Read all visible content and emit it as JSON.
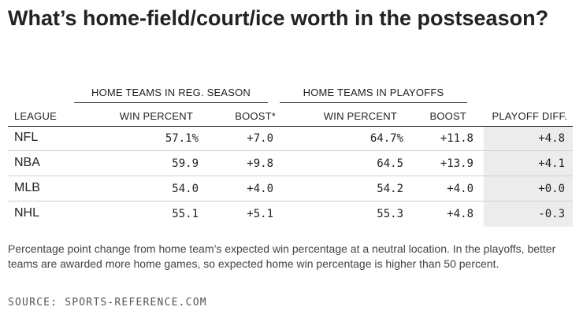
{
  "title": "What’s home-field/court/ice worth in the postseason?",
  "groups": {
    "reg_season": "HOME TEAMS IN REG. SEASON",
    "playoffs": "HOME TEAMS IN PLAYOFFS"
  },
  "columns": [
    "LEAGUE",
    "WIN PERCENT",
    "BOOST*",
    "WIN PERCENT",
    "BOOST",
    "PLAYOFF DIFF."
  ],
  "rows": [
    {
      "league": "NFL",
      "reg_win": "57.1%",
      "reg_boost": "+7.0",
      "po_win": "64.7%",
      "po_boost": "+11.8",
      "diff": "+4.8"
    },
    {
      "league": "NBA",
      "reg_win": "59.9",
      "reg_boost": "+9.8",
      "po_win": "64.5",
      "po_boost": "+13.9",
      "diff": "+4.1"
    },
    {
      "league": "MLB",
      "reg_win": "54.0",
      "reg_boost": "+4.0",
      "po_win": "54.2",
      "po_boost": "+4.0",
      "diff": "+0.0"
    },
    {
      "league": "NHL",
      "reg_win": "55.1",
      "reg_boost": "+5.1",
      "po_win": "55.3",
      "po_boost": "+4.8",
      "diff": "-0.3"
    }
  ],
  "footnote": "Percentage point change from home team’s expected win percentage at a neutral location. In the playoffs, better teams are awarded more home games, so expected home win percentage is higher than 50 percent.",
  "source": "SOURCE: SPORTS-REFERENCE.COM",
  "colors": {
    "text": "#222222",
    "highlight_column": "#ececec",
    "row_divider": "#d0d0d0"
  }
}
